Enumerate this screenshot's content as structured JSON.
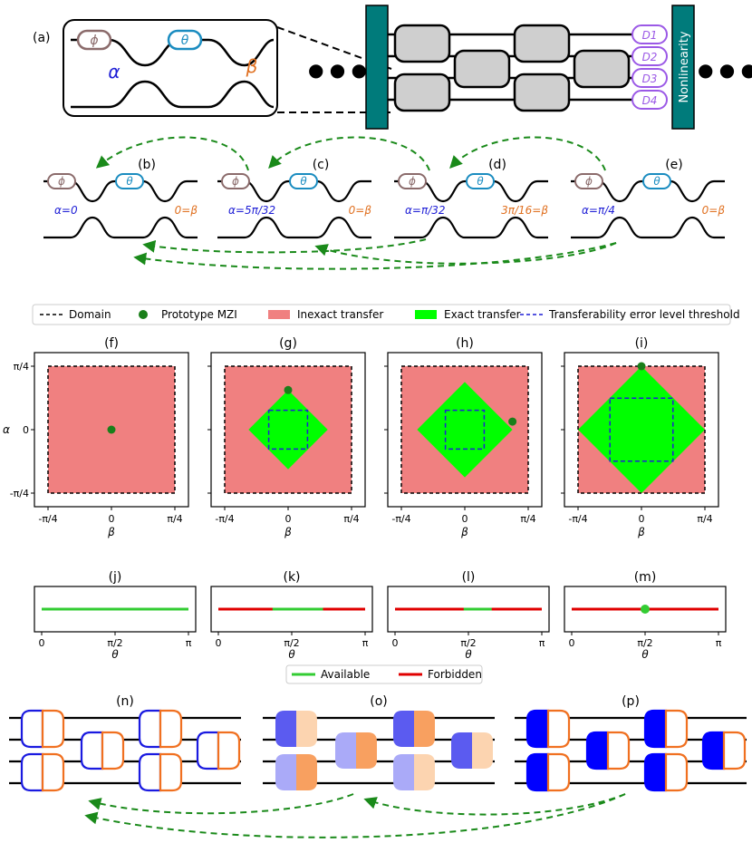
{
  "top": {
    "panel_a_label": "(a)",
    "phi": "ϕ",
    "theta": "θ",
    "alpha": "α",
    "beta": "β",
    "detectors": [
      "D1",
      "D2",
      "D3",
      "D4"
    ],
    "nonlinearity": "Nonlinearity",
    "ellipsis": "● ● ●"
  },
  "mzi_row": [
    {
      "label": "(b)",
      "alpha": "α=0",
      "beta": "0=β"
    },
    {
      "label": "(c)",
      "alpha": "α=5π/32",
      "beta": "0=β"
    },
    {
      "label": "(d)",
      "alpha": "α=π/32",
      "beta": "3π/16=β"
    },
    {
      "label": "(e)",
      "alpha": "α=π/4",
      "beta": "0=β"
    }
  ],
  "legend_top": {
    "items": [
      "Domain",
      "Prototype MZI",
      "Inexact transfer",
      "Exact transfer",
      "Transferability error level threshold"
    ]
  },
  "colors": {
    "inexact": "#f08080",
    "exact": "#00ff00",
    "teal": "#007b7b",
    "available": "#33cc33",
    "forbidden": "#e00000",
    "prototype": "#1a7f1a",
    "alpha_color": "#1f1fd6",
    "beta_color": "#e07020"
  },
  "chart_data": [
    {
      "type": "scatter",
      "label": "(f)",
      "xlabel": "β",
      "ylabel": "α",
      "xticks": [
        "-π/4",
        "0",
        "π/4"
      ],
      "yticks": [
        "π/4",
        "0",
        "-π/4"
      ],
      "xlim": [
        -0.785,
        0.785
      ],
      "ylim": [
        -0.785,
        0.785
      ],
      "prototype": [
        0,
        0
      ],
      "exact_half_width": 0,
      "threshold_half_width": 0
    },
    {
      "type": "scatter",
      "label": "(g)",
      "xlabel": "β",
      "xticks": [
        "-π/4",
        "0",
        "π/4"
      ],
      "xlim": [
        -0.785,
        0.785
      ],
      "ylim": [
        -0.785,
        0.785
      ],
      "prototype": [
        0,
        0.49
      ],
      "exact_half_width": 0.49,
      "threshold_half_width": 0.24
    },
    {
      "type": "scatter",
      "label": "(h)",
      "xlabel": "β",
      "xticks": [
        "-π/4",
        "0",
        "π/4"
      ],
      "xlim": [
        -0.785,
        0.785
      ],
      "ylim": [
        -0.785,
        0.785
      ],
      "prototype": [
        0.59,
        0.1
      ],
      "exact_half_width": 0.59,
      "threshold_half_width": 0.24
    },
    {
      "type": "scatter",
      "label": "(i)",
      "xlabel": "β",
      "xticks": [
        "-π/4",
        "0",
        "π/4"
      ],
      "xlim": [
        -0.785,
        0.785
      ],
      "ylim": [
        -0.785,
        0.785
      ],
      "prototype": [
        0,
        0.785
      ],
      "exact_half_width": 0.785,
      "threshold_half_width": 0.39
    }
  ],
  "theta_panels": [
    {
      "label": "(j)",
      "available": [
        0,
        3.1416
      ]
    },
    {
      "label": "(k)",
      "available": [
        1.16,
        2.24
      ]
    },
    {
      "label": "(l)",
      "available": [
        1.47,
        2.07
      ]
    },
    {
      "label": "(m)",
      "available": [
        1.5708,
        1.5708
      ]
    }
  ],
  "theta_axis": {
    "xlabel": "θ",
    "ticks": [
      "0",
      "π/2",
      "π"
    ]
  },
  "legend_bottom": {
    "items": [
      "Available",
      "Forbidden"
    ]
  },
  "bottom_labels": [
    "(n)",
    "(o)",
    "(p)"
  ]
}
